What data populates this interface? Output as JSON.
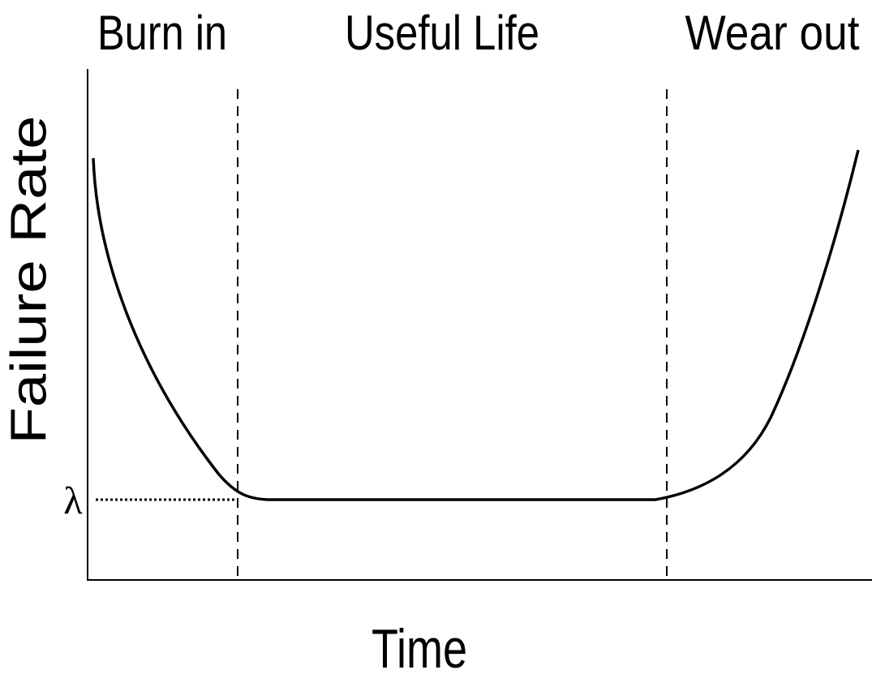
{
  "phases": [
    "Burn in",
    "Useful Life",
    "Wear out"
  ],
  "y_axis_label": "Failure Rate",
  "x_axis_label": "Time",
  "lambda_label": "λ"
}
